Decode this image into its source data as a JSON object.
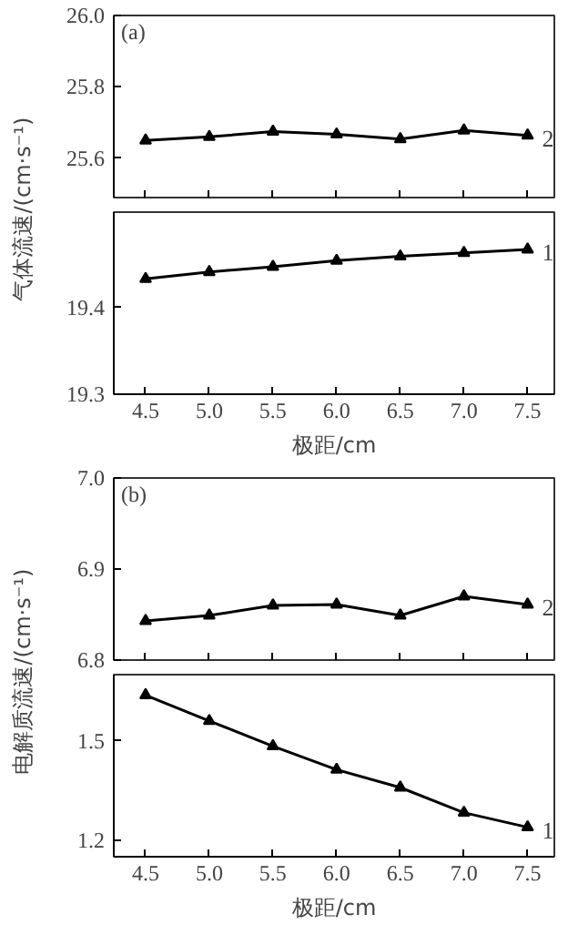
{
  "chart_data": [
    {
      "type": "line",
      "annotations": [
        "(a)"
      ],
      "ylabel": "气体流速/(cm·s⁻¹)",
      "x": [
        4.5,
        5.0,
        5.5,
        6.0,
        6.5,
        7.0,
        7.5
      ],
      "xlim": [
        4.25,
        7.71
      ],
      "xticks": [
        4.5,
        5.0,
        5.5,
        6.0,
        6.5,
        7.0,
        7.5
      ],
      "ylim": [
        25.49,
        26.0
      ],
      "yticks": [
        25.6,
        25.8,
        {
          "value": 26.0,
          "label": "26.0"
        }
      ],
      "tick_labels": "y",
      "grid": false,
      "line_style": "solid",
      "series": [
        {
          "name": "2",
          "color": "#000000",
          "marker": "triangle",
          "values": [
            25.65,
            25.66,
            25.675,
            25.667,
            25.654,
            25.678,
            25.664
          ]
        }
      ]
    },
    {
      "type": "line",
      "xlabel": "极距/cm",
      "x": [
        4.5,
        5.0,
        5.5,
        6.0,
        6.5,
        7.0,
        7.5
      ],
      "xlim": [
        4.25,
        7.71
      ],
      "xticks": [
        4.5,
        {
          "value": 5.0,
          "label": "5.0"
        },
        5.5,
        {
          "value": 6.0,
          "label": "6.0"
        },
        6.5,
        {
          "value": 7.0,
          "label": "7.0"
        },
        7.5
      ],
      "ylim": [
        19.3,
        19.51
      ],
      "yticks": [
        19.3,
        19.4
      ],
      "grid": false,
      "line_style": "solid",
      "series": [
        {
          "name": "1",
          "color": "#000000",
          "marker": "triangle",
          "values": [
            19.433,
            19.441,
            19.447,
            19.454,
            19.459,
            19.463,
            19.467
          ]
        }
      ]
    },
    {
      "type": "line",
      "annotations": [
        "(b)"
      ],
      "ylabel": "电解质流速/(cm·s⁻¹)",
      "x": [
        4.5,
        5.0,
        5.5,
        6.0,
        6.5,
        7.0,
        7.5
      ],
      "xlim": [
        4.25,
        7.71
      ],
      "xticks": [
        4.5,
        5.0,
        5.5,
        6.0,
        6.5,
        7.0,
        7.5
      ],
      "ylim": [
        6.8,
        7.0
      ],
      "yticks": [
        6.8,
        6.9,
        {
          "value": 7.0,
          "label": "7.0"
        }
      ],
      "tick_labels": "y",
      "grid": false,
      "line_style": "solid",
      "series": [
        {
          "name": "2",
          "color": "#000000",
          "marker": "triangle",
          "values": [
            6.843,
            6.849,
            6.86,
            6.861,
            6.849,
            6.87,
            6.861
          ]
        }
      ]
    },
    {
      "type": "line",
      "xlabel": "极距/cm",
      "x": [
        4.5,
        5.0,
        5.5,
        6.0,
        6.5,
        7.0,
        7.5
      ],
      "xlim": [
        4.25,
        7.71
      ],
      "xticks": [
        4.5,
        {
          "value": 5.0,
          "label": "5.0"
        },
        5.5,
        {
          "value": 6.0,
          "label": "6.0"
        },
        6.5,
        {
          "value": 7.0,
          "label": "7.0"
        },
        7.5
      ],
      "ylim": [
        1.15,
        1.7
      ],
      "yticks": [
        1.2,
        1.5
      ],
      "grid": false,
      "line_style": "solid",
      "series": [
        {
          "name": "1",
          "color": "#000000",
          "marker": "triangle",
          "values": [
            1.638,
            1.56,
            1.484,
            1.413,
            1.359,
            1.283,
            1.239
          ]
        }
      ]
    }
  ]
}
